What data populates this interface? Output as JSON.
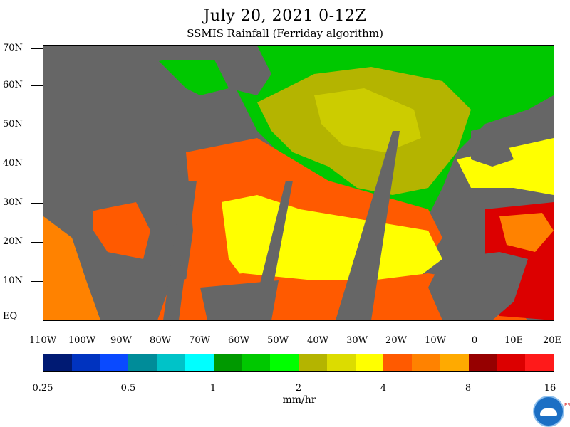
{
  "title": "July 20, 2021 0-12Z",
  "subtitle": "SSMIS Rainfall (Ferriday algorithm)",
  "lat_labels": [
    "70N",
    "60N",
    "50N",
    "40N",
    "30N",
    "20N",
    "10N",
    "EQ"
  ],
  "lon_labels": [
    "110W",
    "100W",
    "90W",
    "80W",
    "70W",
    "60W",
    "50W",
    "40W",
    "30W",
    "20W",
    "10W",
    "0",
    "10E",
    "20E"
  ],
  "colorbar": {
    "colors": [
      "#001a73",
      "#0033bf",
      "#0a4aff",
      "#008c99",
      "#00c3c8",
      "#00ffff",
      "#009900",
      "#00c800",
      "#00ff00",
      "#b4b400",
      "#dcdc00",
      "#ffff00",
      "#ff5a00",
      "#ff8200",
      "#ffaa00",
      "#960000",
      "#dc0000",
      "#ff1a1a"
    ],
    "labels": [
      "0.25",
      "0.5",
      "1",
      "2",
      "4",
      "8",
      "16"
    ],
    "units": "mm/hr"
  },
  "map": {
    "lat_range": [
      0,
      70
    ],
    "lon_range": [
      -110,
      20
    ],
    "land_color": "#666666",
    "fill_colors": {
      "heavy": "#ff5a00",
      "moderate": "#ff8200",
      "light": "#ffff00",
      "olive": "#b4b400",
      "green": "#00c800",
      "red": "#dc0000"
    }
  },
  "logo": {
    "psl_text": "PSL"
  }
}
